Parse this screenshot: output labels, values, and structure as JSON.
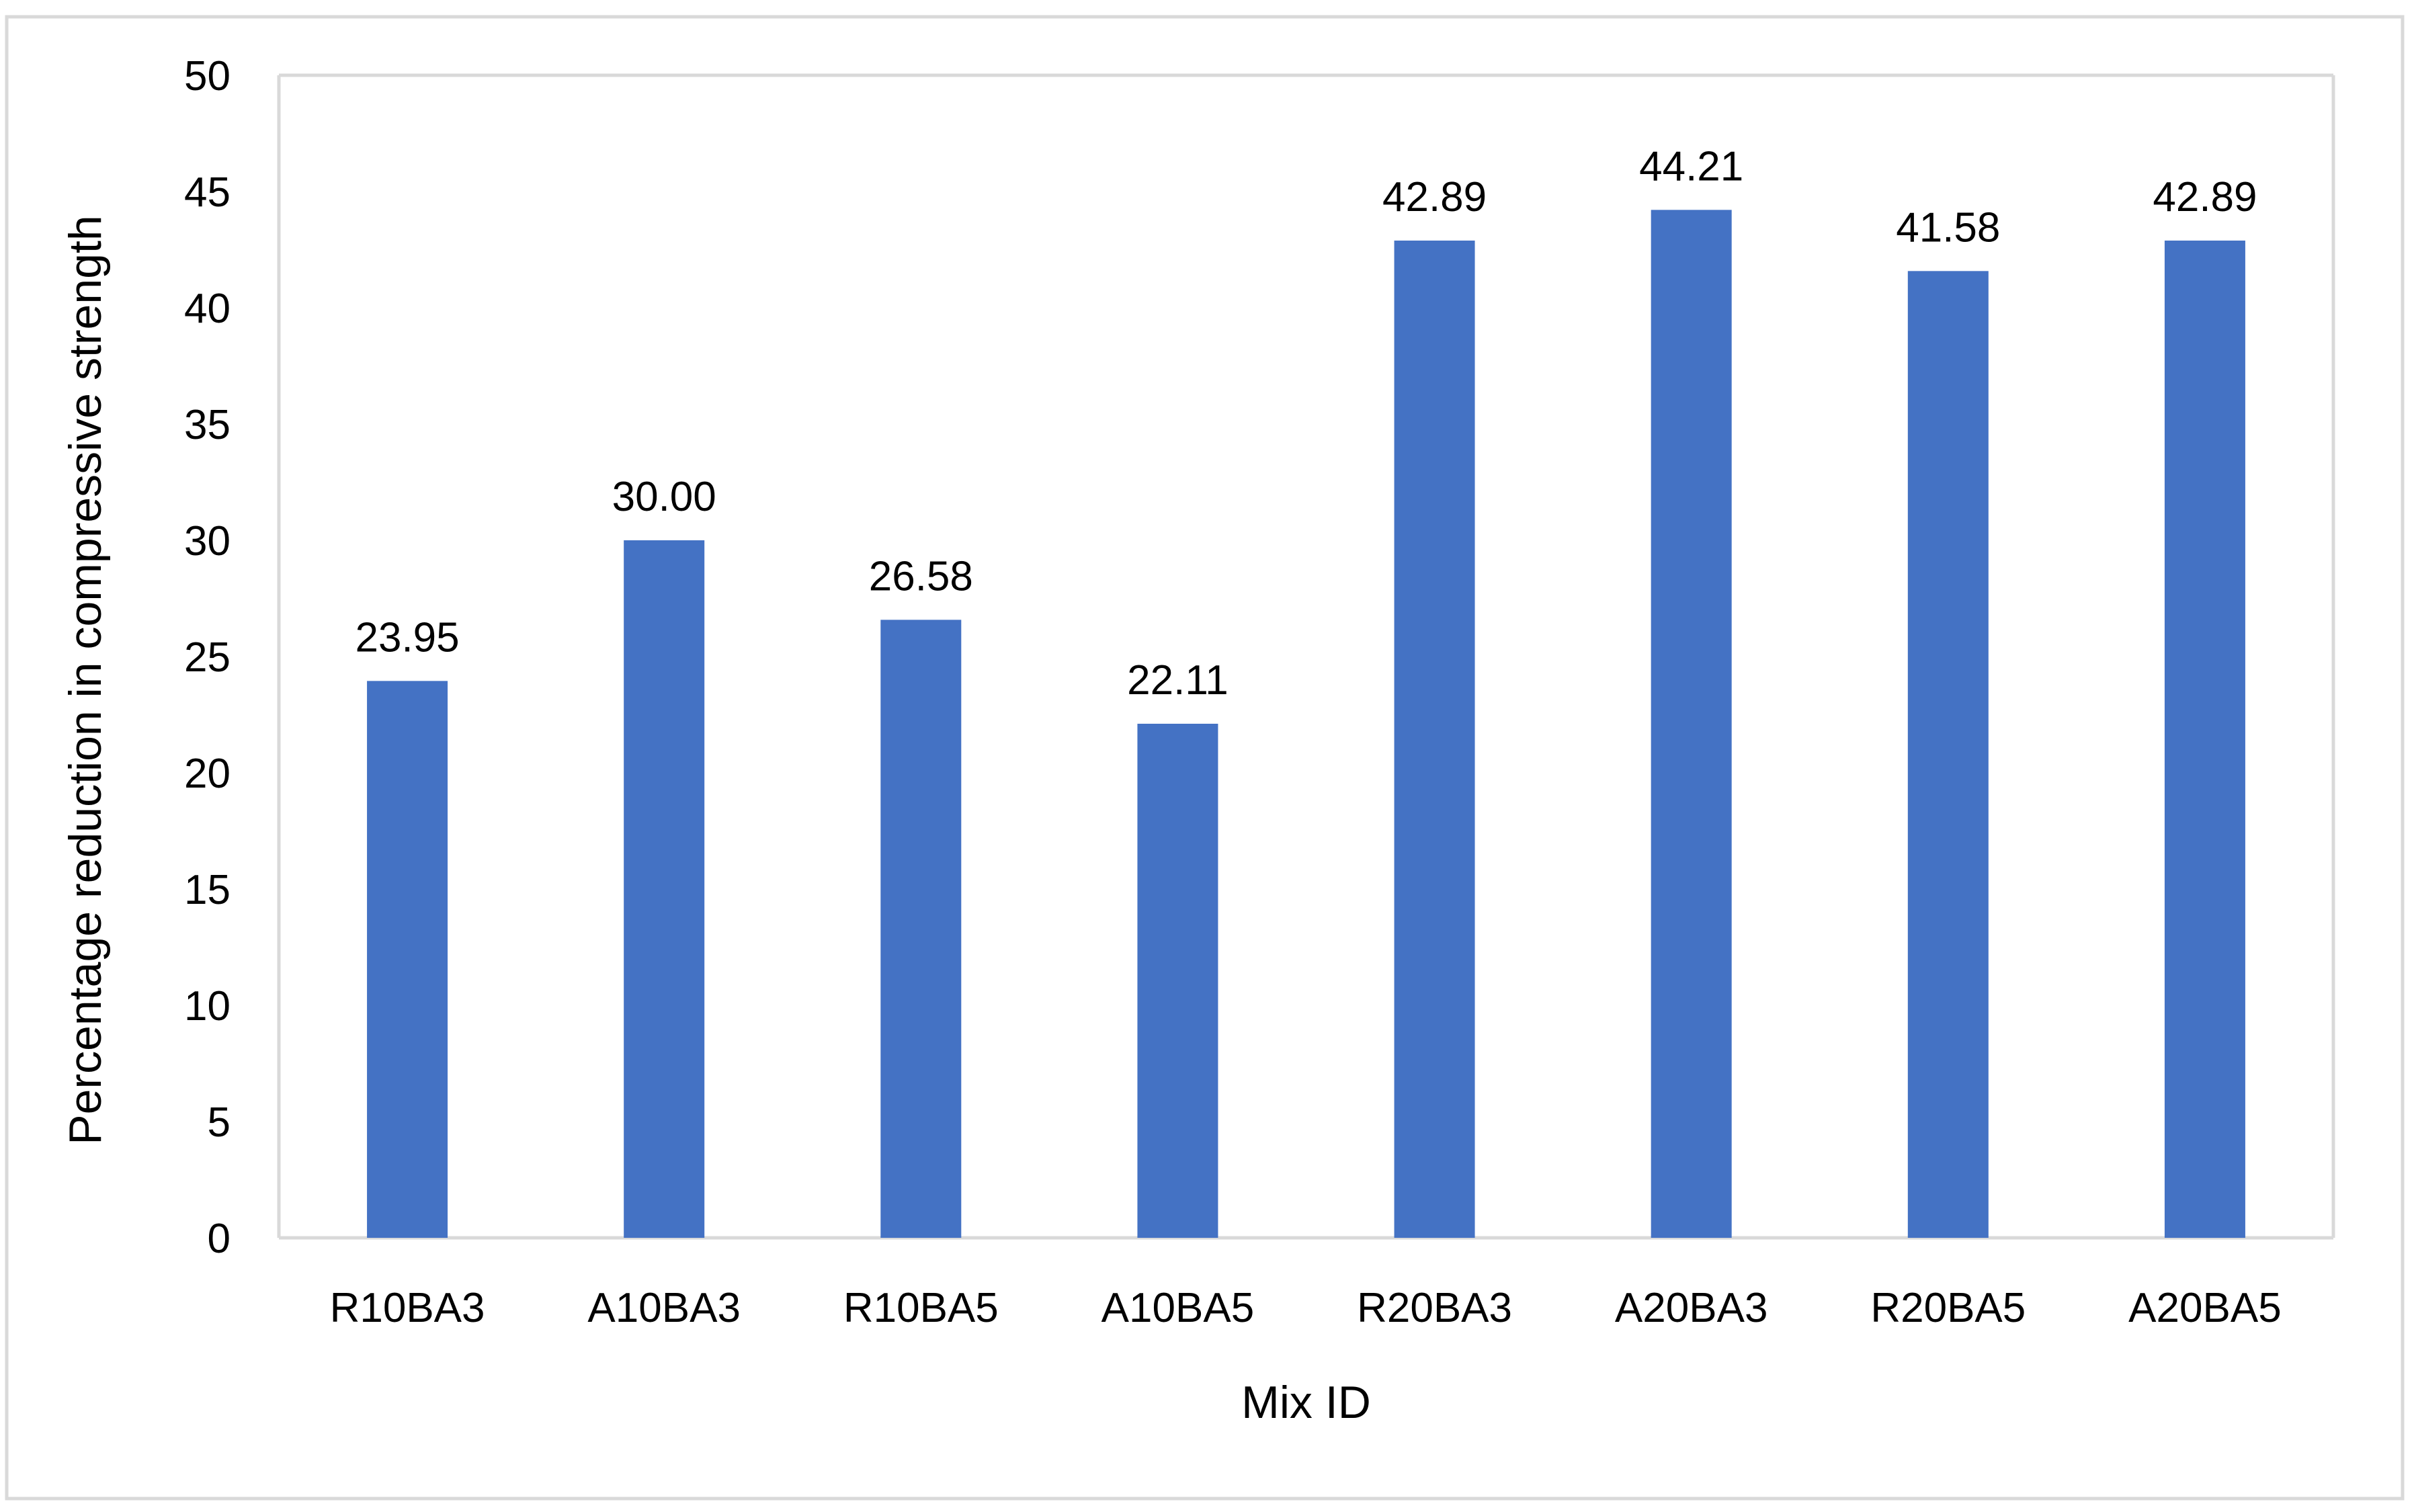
{
  "chart_data": {
    "type": "bar",
    "title": "",
    "xlabel": "Mix ID",
    "ylabel": "Percentage reduction in compressive strength",
    "categories": [
      "R10BA3",
      "A10BA3",
      "R10BA5",
      "A10BA5",
      "R20BA3",
      "A20BA3",
      "R20BA5",
      "A20BA5"
    ],
    "values": [
      23.95,
      30.0,
      26.58,
      22.11,
      42.89,
      44.21,
      41.58,
      42.89
    ],
    "data_labels": [
      "23.95",
      "30.00",
      "26.58",
      "22.11",
      "42.89",
      "44.21",
      "41.58",
      "42.89"
    ],
    "ylim": [
      0,
      50
    ],
    "yticks": [
      0,
      5,
      10,
      15,
      20,
      25,
      30,
      35,
      40,
      45,
      50
    ],
    "grid": false,
    "legend": "none",
    "bar_color": "#4472C4",
    "axis_color": "#D9D9D9",
    "frame_color": "#D9D9D9"
  }
}
